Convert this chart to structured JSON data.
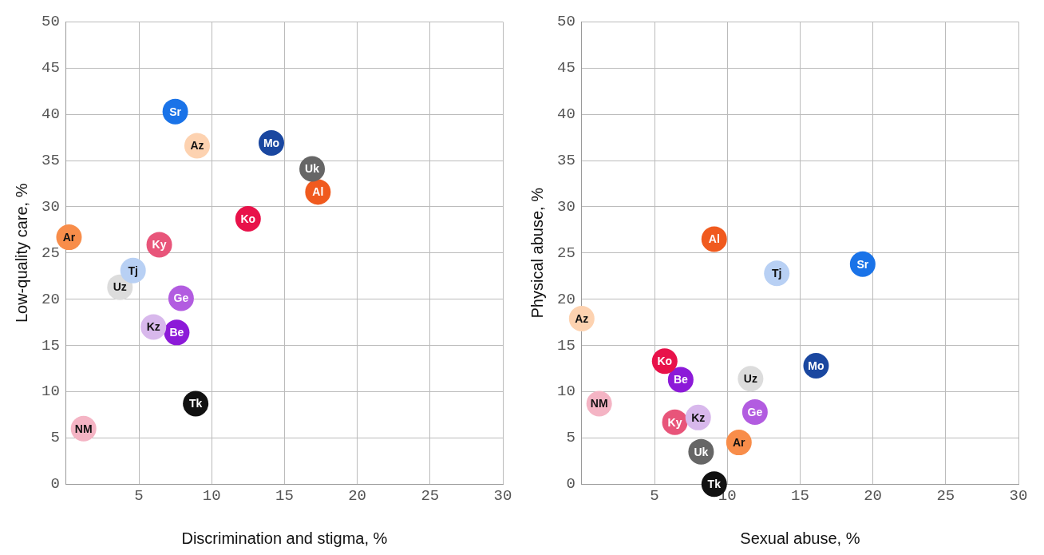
{
  "chart_data": [
    {
      "type": "scatter",
      "xlabel": "Discrimination and stigma, %",
      "ylabel": "Low-quality care, %",
      "xlim": [
        0,
        30
      ],
      "ylim": [
        0,
        50
      ],
      "xticks": [
        {
          "value": 0,
          "label": null
        },
        5,
        10,
        15,
        20,
        25,
        30
      ],
      "yticks": [
        0,
        5,
        10,
        15,
        20,
        25,
        30,
        35,
        40,
        45,
        50
      ],
      "grid": true,
      "legend": false,
      "marker": "circle",
      "series": [
        {
          "name": "Sr",
          "color": "#1a73e8",
          "x": [
            7.5
          ],
          "values": [
            40.3
          ]
        },
        {
          "name": "Az",
          "color": "#fdd2b0",
          "x": [
            9.0
          ],
          "values": [
            36.6
          ]
        },
        {
          "name": "Mo",
          "color": "#1a47a0",
          "x": [
            14.1
          ],
          "values": [
            36.9
          ]
        },
        {
          "name": "Uk",
          "color": "#666666",
          "x": [
            16.9
          ],
          "values": [
            34.1
          ]
        },
        {
          "name": "Al",
          "color": "#f05a1e",
          "x": [
            17.3
          ],
          "values": [
            31.6
          ]
        },
        {
          "name": "Ko",
          "color": "#e8124a",
          "x": [
            12.5
          ],
          "values": [
            28.7
          ]
        },
        {
          "name": "Ar",
          "color": "#f88d4a",
          "x": [
            0.2
          ],
          "values": [
            26.7
          ]
        },
        {
          "name": "Ky",
          "color": "#e8557a",
          "x": [
            6.4
          ],
          "values": [
            25.9
          ]
        },
        {
          "name": "Tj",
          "color": "#b8d0f4",
          "x": [
            4.6
          ],
          "values": [
            23.1
          ]
        },
        {
          "name": "Uz",
          "color": "#dcdcdc",
          "x": [
            3.7
          ],
          "values": [
            21.3
          ]
        },
        {
          "name": "Ge",
          "color": "#b25ce0",
          "x": [
            7.9
          ],
          "values": [
            20.1
          ]
        },
        {
          "name": "Kz",
          "color": "#d8b8ec",
          "x": [
            6.0
          ],
          "values": [
            17.0
          ]
        },
        {
          "name": "Be",
          "color": "#8c1ad8",
          "x": [
            7.6
          ],
          "values": [
            16.4
          ]
        },
        {
          "name": "Tk",
          "color": "#111111",
          "x": [
            8.9
          ],
          "values": [
            8.7
          ]
        },
        {
          "name": "NM",
          "color": "#f4b4c4",
          "x": [
            1.2
          ],
          "values": [
            6.0
          ]
        }
      ]
    },
    {
      "type": "scatter",
      "xlabel": "Sexual abuse, %",
      "ylabel": "Physical abuse, %",
      "xlim": [
        0,
        30
      ],
      "ylim": [
        0,
        50
      ],
      "xticks": [
        {
          "value": 0,
          "label": null
        },
        5,
        10,
        15,
        20,
        25,
        30
      ],
      "yticks": [
        0,
        5,
        10,
        15,
        20,
        25,
        30,
        35,
        40,
        45,
        50
      ],
      "grid": true,
      "legend": false,
      "marker": "circle",
      "series": [
        {
          "name": "Al",
          "color": "#f05a1e",
          "x": [
            9.1
          ],
          "values": [
            26.5
          ]
        },
        {
          "name": "Sr",
          "color": "#1a73e8",
          "x": [
            19.3
          ],
          "values": [
            23.8
          ]
        },
        {
          "name": "Tj",
          "color": "#b8d0f4",
          "x": [
            13.4
          ],
          "values": [
            22.8
          ]
        },
        {
          "name": "Az",
          "color": "#fdd2b0",
          "x": [
            0.0
          ],
          "values": [
            17.9
          ]
        },
        {
          "name": "Ko",
          "color": "#e8124a",
          "x": [
            5.7
          ],
          "values": [
            13.3
          ]
        },
        {
          "name": "Mo",
          "color": "#1a47a0",
          "x": [
            16.1
          ],
          "values": [
            12.8
          ]
        },
        {
          "name": "Be",
          "color": "#8c1ad8",
          "x": [
            6.8
          ],
          "values": [
            11.3
          ]
        },
        {
          "name": "Uz",
          "color": "#dcdcdc",
          "x": [
            11.6
          ],
          "values": [
            11.4
          ]
        },
        {
          "name": "NM",
          "color": "#f4b4c4",
          "x": [
            1.2
          ],
          "values": [
            8.7
          ]
        },
        {
          "name": "Ge",
          "color": "#b25ce0",
          "x": [
            11.9
          ],
          "values": [
            7.8
          ]
        },
        {
          "name": "Kz",
          "color": "#d8b8ec",
          "x": [
            8.0
          ],
          "values": [
            7.2
          ]
        },
        {
          "name": "Ky",
          "color": "#e8557a",
          "x": [
            6.4
          ],
          "values": [
            6.7
          ]
        },
        {
          "name": "Ar",
          "color": "#f88d4a",
          "x": [
            10.8
          ],
          "values": [
            4.5
          ]
        },
        {
          "name": "Uk",
          "color": "#666666",
          "x": [
            8.2
          ],
          "values": [
            3.5
          ]
        },
        {
          "name": "Tk",
          "color": "#111111",
          "x": [
            9.1
          ],
          "values": [
            0.0
          ]
        }
      ]
    }
  ]
}
